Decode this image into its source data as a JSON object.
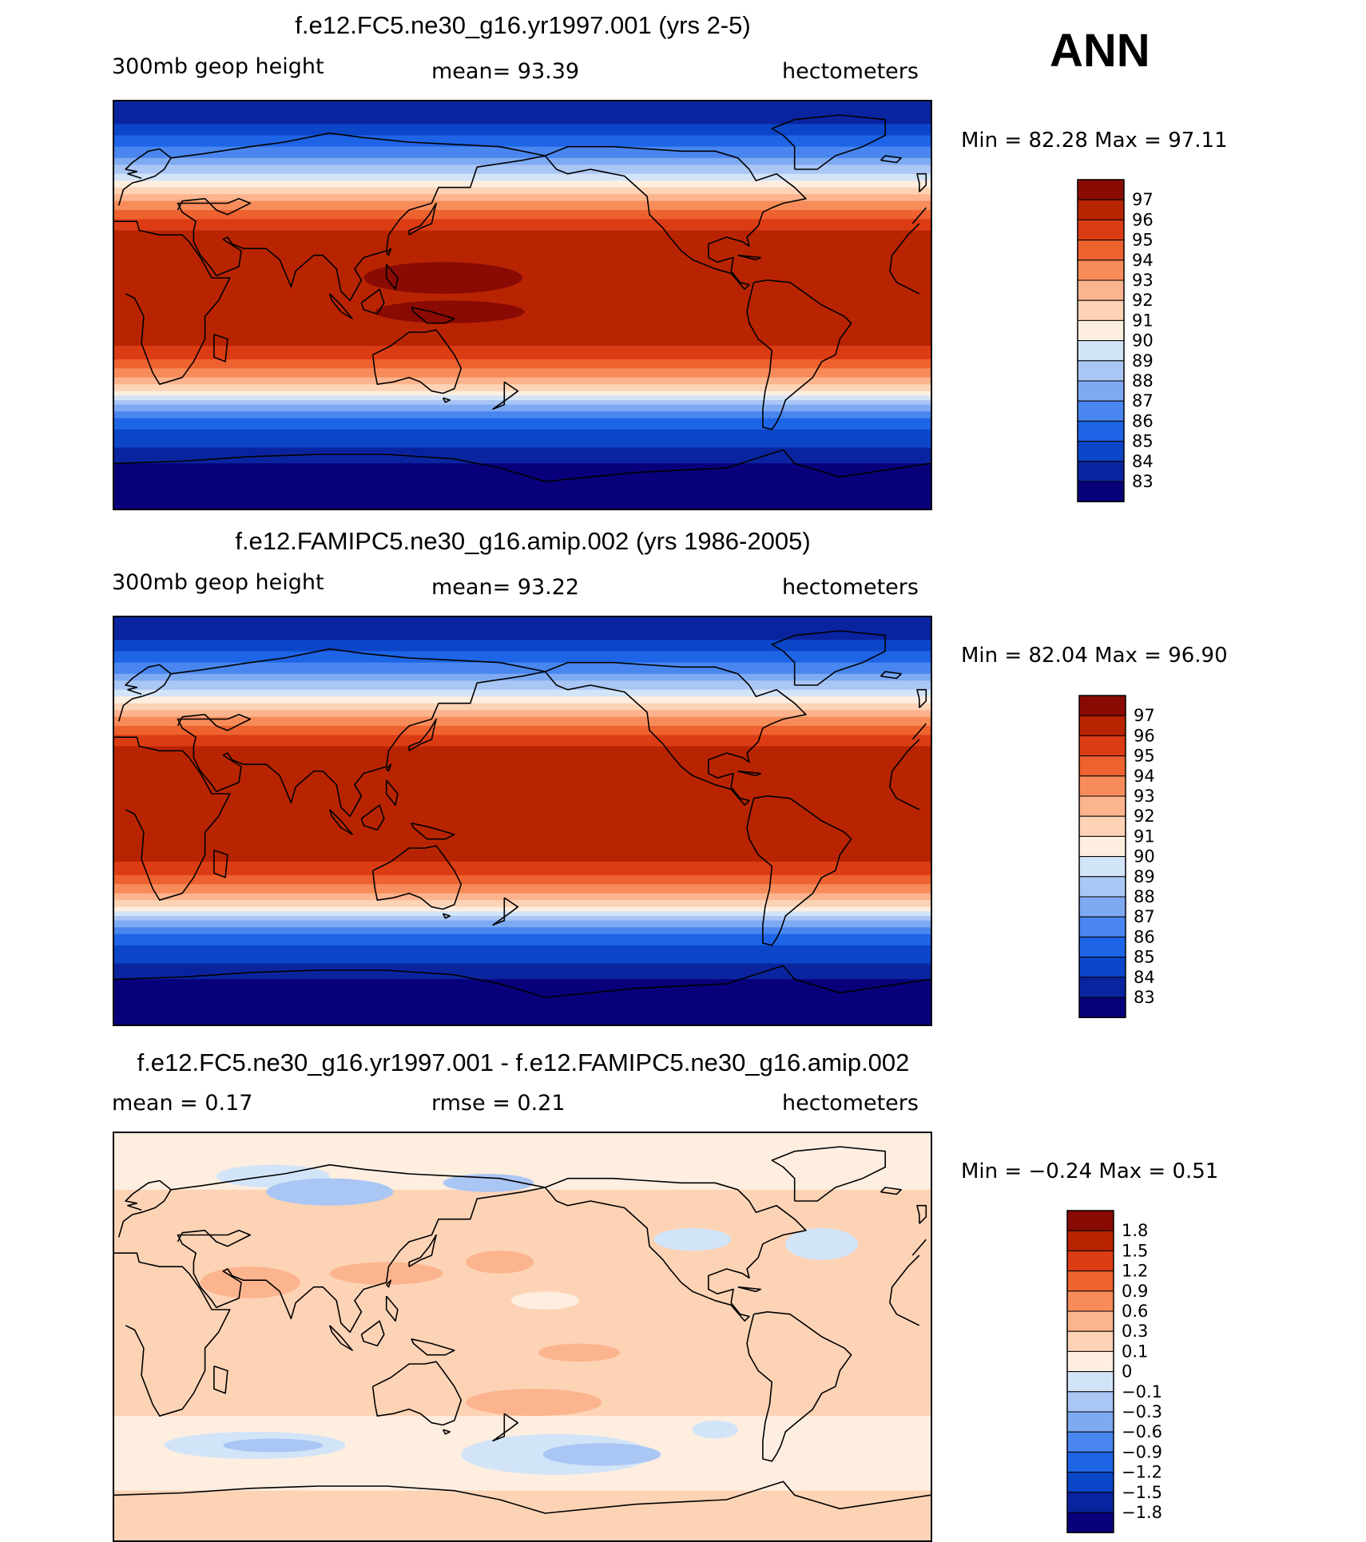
{
  "season": "ANN",
  "palettes": {
    "abs": [
      "#08007a",
      "#0a24a0",
      "#0c46c8",
      "#1e64e6",
      "#4a86f0",
      "#7eaaf2",
      "#aac6f4",
      "#d2e4f8",
      "#fdeee0",
      "#fdd3b6",
      "#fbb48e",
      "#f78c5a",
      "#ee6230",
      "#dc3c14",
      "#b82402",
      "#8a0a04"
    ],
    "diff": [
      "#08007a",
      "#0a24a0",
      "#0c46c8",
      "#1e64e6",
      "#4a86f0",
      "#7eaaf2",
      "#aac6f4",
      "#d2e4f8",
      "#fdeee0",
      "#fdd3b6",
      "#fbb48e",
      "#f78c5a",
      "#ee6230",
      "#dc3c14",
      "#b82402",
      "#8a0a04"
    ]
  },
  "panels": [
    {
      "id": "test",
      "title": "f.e12.FC5.ne30_g16.yr1997.001 (yrs 2-5)",
      "left_text": "300mb  geop  height",
      "mid_text": "mean=   93.39",
      "right_text": "hectometers",
      "minmax": "Min  =   82.28  Max  =   97.11",
      "levels": [
        "97",
        "96",
        "95",
        "94",
        "93",
        "92",
        "91",
        "90",
        "89",
        "88",
        "87",
        "86",
        "85",
        "84",
        "83"
      ],
      "palette": "abs",
      "zonal_class_by_lat": [
        [
          90,
          1
        ],
        [
          80,
          2
        ],
        [
          75,
          3
        ],
        [
          70,
          4
        ],
        [
          65,
          5
        ],
        [
          62,
          6
        ],
        [
          58,
          7
        ],
        [
          55,
          8
        ],
        [
          52,
          9
        ],
        [
          49,
          10
        ],
        [
          46,
          11
        ],
        [
          42,
          12
        ],
        [
          38,
          13
        ],
        [
          33,
          14
        ],
        [
          -18,
          13
        ],
        [
          -24,
          12
        ],
        [
          -28,
          11
        ],
        [
          -32,
          10
        ],
        [
          -35,
          9
        ],
        [
          -38,
          8
        ],
        [
          -40,
          7
        ],
        [
          -42,
          6
        ],
        [
          -44,
          5
        ],
        [
          -47,
          4
        ],
        [
          -50,
          3
        ],
        [
          -55,
          2
        ],
        [
          -63,
          1
        ],
        [
          -70,
          0
        ]
      ],
      "anomalies": [
        {
          "lon": 145,
          "lat": 12,
          "rx": 35,
          "ry": 7,
          "cls": 15
        },
        {
          "lon": 148,
          "lat": -3,
          "rx": 33,
          "ry": 5,
          "cls": 15
        }
      ]
    },
    {
      "id": "control",
      "title": "f.e12.FAMIPC5.ne30_g16.amip.002 (yrs 1986-2005)",
      "left_text": "300mb  geop  height",
      "mid_text": "mean=   93.22",
      "right_text": "hectometers",
      "minmax": "Min  =   82.04  Max  =   96.90",
      "levels": [
        "97",
        "96",
        "95",
        "94",
        "93",
        "92",
        "91",
        "90",
        "89",
        "88",
        "87",
        "86",
        "85",
        "84",
        "83"
      ],
      "palette": "abs",
      "zonal_class_by_lat": [
        [
          90,
          1
        ],
        [
          80,
          2
        ],
        [
          75,
          3
        ],
        [
          70,
          4
        ],
        [
          65,
          5
        ],
        [
          62,
          6
        ],
        [
          58,
          7
        ],
        [
          55,
          8
        ],
        [
          52,
          9
        ],
        [
          49,
          10
        ],
        [
          46,
          11
        ],
        [
          42,
          12
        ],
        [
          38,
          13
        ],
        [
          33,
          14
        ],
        [
          -18,
          13
        ],
        [
          -24,
          12
        ],
        [
          -28,
          11
        ],
        [
          -32,
          10
        ],
        [
          -35,
          9
        ],
        [
          -38,
          8
        ],
        [
          -40,
          7
        ],
        [
          -42,
          6
        ],
        [
          -44,
          5
        ],
        [
          -47,
          4
        ],
        [
          -50,
          3
        ],
        [
          -55,
          2
        ],
        [
          -63,
          1
        ],
        [
          -70,
          0
        ]
      ],
      "anomalies": []
    },
    {
      "id": "diff",
      "title": "f.e12.FC5.ne30_g16.yr1997.001 - f.e12.FAMIPC5.ne30_g16.amip.002",
      "left_text": "mean  =      0.17",
      "mid_text": "rmse  =      0.21",
      "right_text": "hectometers",
      "minmax": "Min  =   −0.24  Max  =        0.51",
      "levels": [
        "1.8",
        "1.5",
        "1.2",
        "0.9",
        "0.6",
        "0.3",
        "0.1",
        "0",
        "−0.1",
        "−0.3",
        "−0.6",
        "−0.9",
        "−1.2",
        "−1.5",
        "−1.8"
      ],
      "palette": "diff",
      "zonal_class_by_lat": [
        [
          90,
          8
        ],
        [
          65,
          9
        ],
        [
          -35,
          8
        ],
        [
          -68,
          9
        ]
      ],
      "anomalies": [
        {
          "lon": 60,
          "lat": 24,
          "rx": 22,
          "ry": 7,
          "cls": 10
        },
        {
          "lon": 120,
          "lat": 28,
          "rx": 25,
          "ry": 5,
          "cls": 10
        },
        {
          "lon": 170,
          "lat": 33,
          "rx": 15,
          "ry": 5,
          "cls": 10
        },
        {
          "lon": 190,
          "lat": 16,
          "rx": 15,
          "ry": 4,
          "cls": 8
        },
        {
          "lon": 205,
          "lat": -7,
          "rx": 18,
          "ry": 4,
          "cls": 10
        },
        {
          "lon": 185,
          "lat": -29,
          "rx": 30,
          "ry": 6,
          "cls": 10
        },
        {
          "lon": 70,
          "lat": 71,
          "rx": 25,
          "ry": 5,
          "cls": 7
        },
        {
          "lon": 95,
          "lat": 64,
          "rx": 28,
          "ry": 6,
          "cls": 6
        },
        {
          "lon": 165,
          "lat": 68,
          "rx": 20,
          "ry": 4,
          "cls": 6
        },
        {
          "lon": 255,
          "lat": 43,
          "rx": 17,
          "ry": 5,
          "cls": 7
        },
        {
          "lon": 312,
          "lat": 41,
          "rx": 16,
          "ry": 7,
          "cls": 7
        },
        {
          "lon": 62,
          "lat": -48,
          "rx": 40,
          "ry": 6,
          "cls": 7
        },
        {
          "lon": 70,
          "lat": -48,
          "rx": 22,
          "ry": 3,
          "cls": 6
        },
        {
          "lon": 195,
          "lat": -52,
          "rx": 42,
          "ry": 9,
          "cls": 7
        },
        {
          "lon": 215,
          "lat": -52,
          "rx": 26,
          "ry": 5,
          "cls": 6
        },
        {
          "lon": 265,
          "lat": -41,
          "rx": 10,
          "ry": 4,
          "cls": 7
        }
      ]
    }
  ]
}
